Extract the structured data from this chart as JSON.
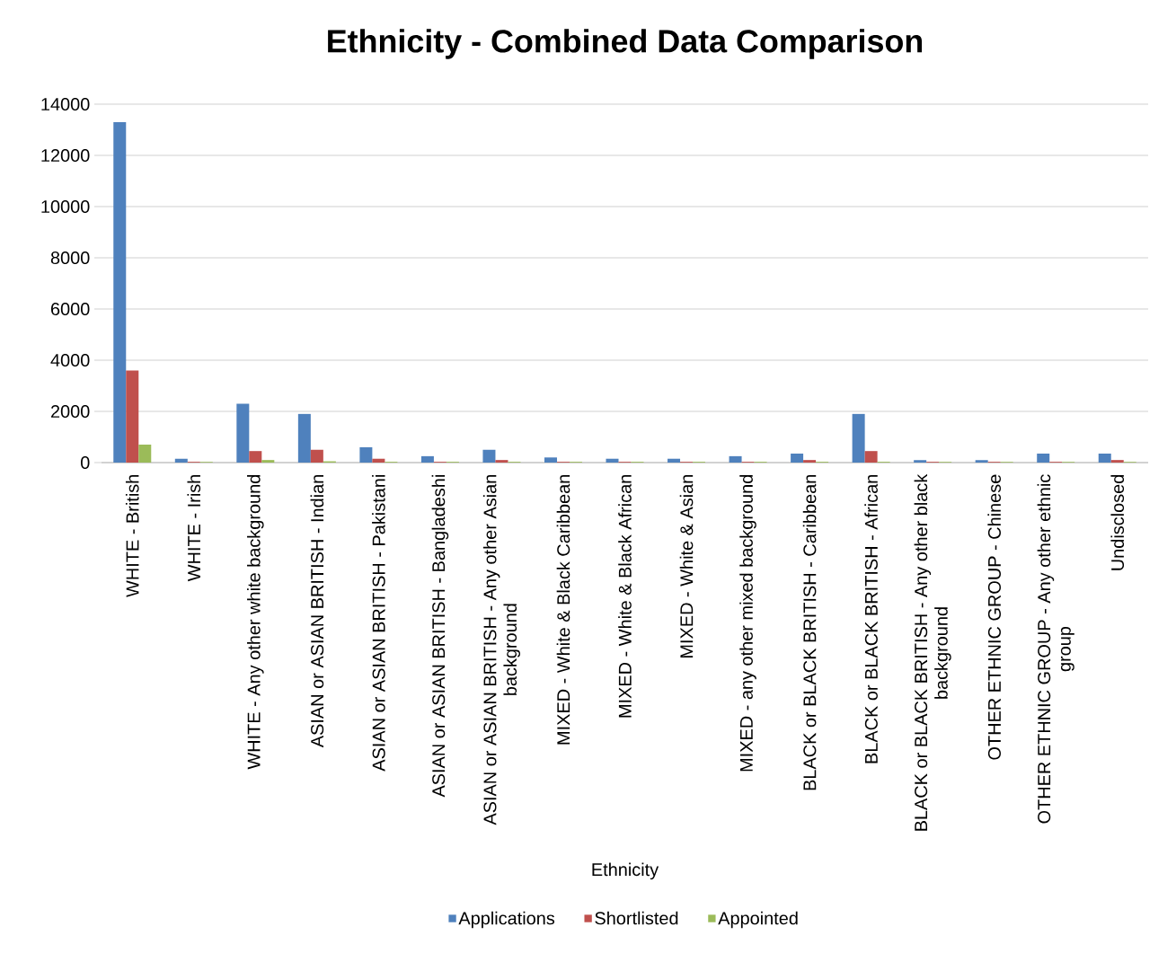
{
  "chart_data": {
    "type": "bar",
    "title": "Ethnicity - Combined Data Comparison",
    "xlabel": "Ethnicity",
    "categories": [
      "WHITE - British",
      "WHITE - Irish",
      "WHITE - Any other white background",
      "ASIAN or ASIAN BRITISH - Indian",
      "ASIAN or ASIAN BRITISH - Pakistani",
      "ASIAN or ASIAN BRITISH - Bangladeshi",
      "ASIAN or ASIAN BRITISH - Any other Asian background",
      "MIXED - White & Black Caribbean",
      "MIXED - White & Black African",
      "MIXED - White & Asian",
      "MIXED - any other mixed background",
      "BLACK or BLACK BRITISH - Caribbean",
      "BLACK or BLACK BRITISH - African",
      "BLACK or BLACK BRITISH - Any other black background",
      "OTHER ETHNIC GROUP - Chinese",
      "OTHER ETHNIC GROUP - Any other ethnic group",
      "Undisclosed"
    ],
    "series": [
      {
        "name": "Applications",
        "color": "#4f81bd",
        "values": [
          13300,
          150,
          2300,
          1900,
          600,
          250,
          500,
          200,
          150,
          150,
          250,
          350,
          1900,
          100,
          100,
          350,
          350
        ]
      },
      {
        "name": "Shortlisted",
        "color": "#c0504d",
        "values": [
          3600,
          30,
          450,
          500,
          150,
          30,
          100,
          30,
          30,
          30,
          30,
          100,
          450,
          30,
          30,
          30,
          100
        ]
      },
      {
        "name": "Appointed",
        "color": "#9bbb59",
        "values": [
          700,
          30,
          100,
          50,
          30,
          30,
          30,
          30,
          30,
          30,
          30,
          30,
          30,
          30,
          30,
          30,
          30
        ]
      }
    ],
    "ylim": [
      0,
      14000
    ],
    "yticks": [
      0,
      2000,
      4000,
      6000,
      8000,
      10000,
      12000,
      14000
    ],
    "grid": "y",
    "legend": "bottom"
  }
}
